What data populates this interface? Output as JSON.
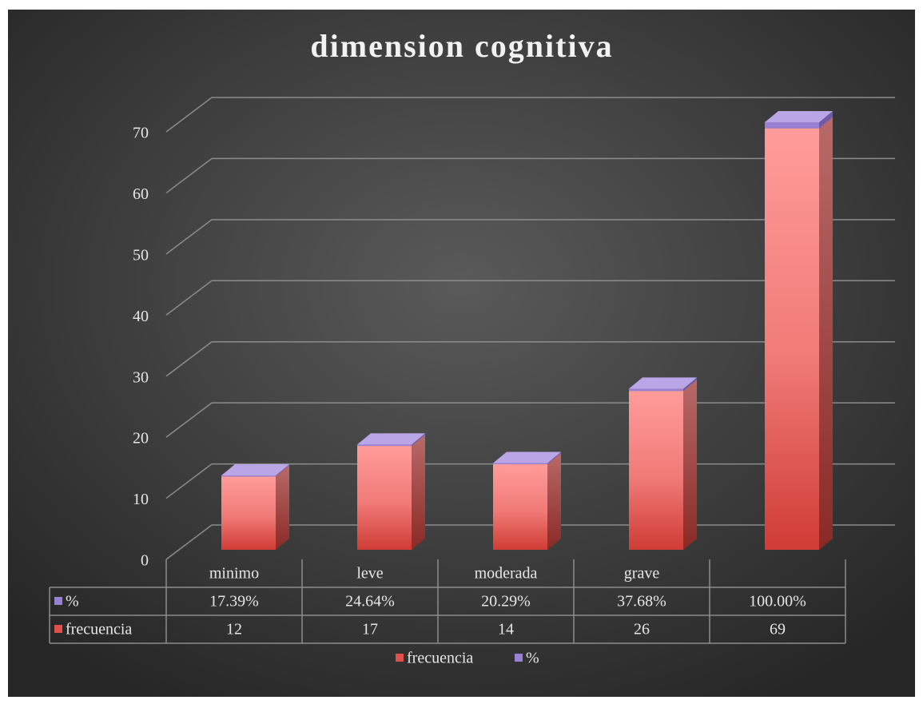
{
  "chart_data": {
    "type": "bar3d_stacked",
    "title": "dimension cognitiva",
    "categories": [
      "minimo",
      "leve",
      "moderada",
      "grave",
      null
    ],
    "series": [
      {
        "name": "frecuencia",
        "color": "#e0504b",
        "values": [
          12,
          17,
          14,
          26,
          69
        ]
      },
      {
        "name": "%",
        "color": "#9a80d2",
        "values": [
          0.1739,
          0.2464,
          0.2029,
          0.3768,
          1.0
        ],
        "value_labels": [
          "17.39%",
          "24.64%",
          "20.29%",
          "37.68%",
          "100.00%"
        ]
      }
    ],
    "ylim": [
      0,
      70
    ],
    "yticks": [
      0,
      10,
      20,
      30,
      40,
      50,
      60,
      70
    ],
    "grid": true,
    "legend": "bottom",
    "data_table": true
  }
}
